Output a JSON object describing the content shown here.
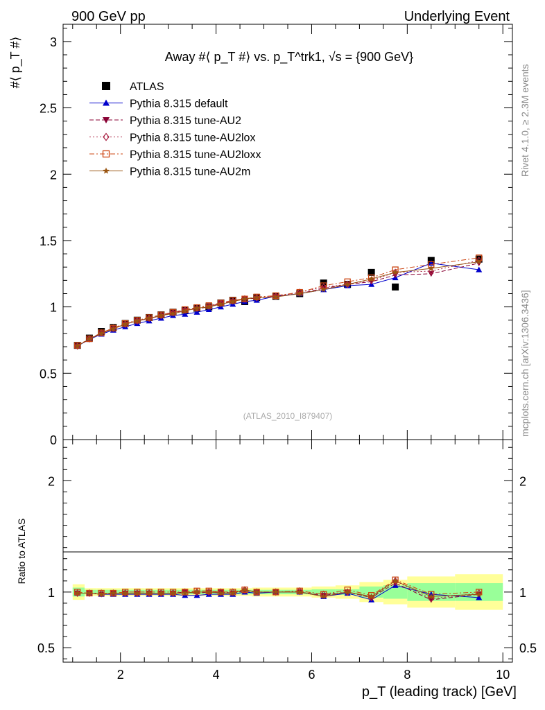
{
  "header": {
    "left": "900 GeV pp",
    "right": "Underlying Event"
  },
  "side_text": {
    "rivet": "Rivet 4.1.0, ≥ 2.3M events",
    "mcplots": "mcplots.cern.ch [arXiv:1306.3436]"
  },
  "chart_data": [
    {
      "type": "scatter",
      "panel": "main",
      "title": "Away #⟨ p_T #⟩ vs. p_T^trk1, √s = {900 GeV}",
      "ylabel": "#⟨ p_T #⟩",
      "xlim": [
        0.8,
        10.2
      ],
      "ylim": [
        0,
        3.13
      ],
      "yticks": [
        0,
        0.5,
        1,
        1.5,
        2,
        2.5,
        3
      ],
      "ytick_labels": [
        "0",
        "0.5",
        "1",
        "1.5",
        "2",
        "2.5",
        "3"
      ],
      "watermark": "(ATLAS_2010_I879407)",
      "x": [
        1.1,
        1.35,
        1.6,
        1.85,
        2.1,
        2.35,
        2.6,
        2.85,
        3.1,
        3.35,
        3.6,
        3.85,
        4.1,
        4.35,
        4.6,
        4.85,
        5.25,
        5.75,
        6.25,
        6.75,
        7.25,
        7.75,
        8.5,
        9.5
      ],
      "series": [
        {
          "name": "ATLAS",
          "color": "#000000",
          "marker": "square",
          "line": "none",
          "values": [
            0.71,
            0.765,
            0.815,
            0.845,
            0.875,
            0.9,
            0.92,
            0.94,
            0.96,
            0.975,
            0.99,
            1.0,
            1.03,
            1.05,
            1.04,
            1.07,
            1.08,
            1.1,
            1.18,
            1.17,
            1.26,
            1.15,
            1.35,
            1.36
          ]
        },
        {
          "name": "Pythia 8.315 default",
          "color": "#0000cc",
          "marker": "triangle-up",
          "line": "solid",
          "values": [
            0.705,
            0.755,
            0.795,
            0.825,
            0.85,
            0.875,
            0.895,
            0.915,
            0.935,
            0.945,
            0.96,
            0.98,
            1.0,
            1.02,
            1.04,
            1.05,
            1.08,
            1.1,
            1.13,
            1.16,
            1.17,
            1.22,
            1.33,
            1.28
          ]
        },
        {
          "name": "Pythia 8.315 tune-AU2",
          "color": "#880033",
          "marker": "triangle-down",
          "line": "dashed",
          "values": [
            0.705,
            0.755,
            0.8,
            0.835,
            0.87,
            0.895,
            0.91,
            0.935,
            0.955,
            0.975,
            0.985,
            1.0,
            1.03,
            1.04,
            1.06,
            1.065,
            1.08,
            1.1,
            1.14,
            1.17,
            1.19,
            1.24,
            1.25,
            1.33
          ]
        },
        {
          "name": "Pythia 8.315 tune-AU2lox",
          "color": "#aa2244",
          "marker": "diamond-open",
          "line": "dotted",
          "values": [
            0.705,
            0.76,
            0.805,
            0.84,
            0.87,
            0.895,
            0.915,
            0.935,
            0.955,
            0.975,
            0.99,
            1.005,
            1.025,
            1.045,
            1.06,
            1.07,
            1.08,
            1.11,
            1.15,
            1.17,
            1.2,
            1.26,
            1.27,
            1.35
          ]
        },
        {
          "name": "Pythia 8.315 tune-AU2loxx",
          "color": "#cc4411",
          "marker": "square-open",
          "line": "dashdot",
          "values": [
            0.71,
            0.76,
            0.805,
            0.84,
            0.875,
            0.9,
            0.92,
            0.94,
            0.96,
            0.98,
            0.995,
            1.01,
            1.03,
            1.05,
            1.06,
            1.075,
            1.085,
            1.11,
            1.16,
            1.19,
            1.22,
            1.28,
            1.32,
            1.37
          ]
        },
        {
          "name": "Pythia 8.315 tune-AU2m",
          "color": "#995511",
          "marker": "star",
          "line": "solid",
          "values": [
            0.705,
            0.76,
            0.8,
            0.835,
            0.87,
            0.895,
            0.915,
            0.935,
            0.95,
            0.97,
            0.99,
            1.0,
            1.02,
            1.04,
            1.06,
            1.07,
            1.075,
            1.1,
            1.13,
            1.17,
            1.21,
            1.26,
            1.29,
            1.34
          ]
        }
      ]
    },
    {
      "type": "scatter",
      "panel": "ratio",
      "ylabel": "Ratio to ATLAS",
      "xlabel": "p_T (leading track) [GeV]",
      "xlim": [
        0.8,
        10.2
      ],
      "xticks": [
        2,
        4,
        6,
        8,
        10
      ],
      "xtick_labels": [
        "2",
        "4",
        "6",
        "8",
        "10"
      ],
      "ylim": [
        0.37,
        2.37
      ],
      "yticks": [
        0.5,
        1,
        2
      ],
      "ytick_labels": [
        "0.5",
        "1",
        "2"
      ],
      "bin_edges": [
        1.0,
        1.25,
        1.5,
        1.75,
        2.0,
        2.25,
        2.5,
        2.75,
        3.0,
        3.25,
        3.5,
        3.75,
        4.0,
        4.25,
        4.5,
        4.75,
        5.0,
        5.5,
        6.0,
        6.5,
        7.0,
        7.5,
        8.0,
        9.0,
        10.0
      ],
      "band_stat": [
        0.04,
        0.02,
        0.02,
        0.02,
        0.02,
        0.02,
        0.02,
        0.02,
        0.02,
        0.02,
        0.02,
        0.02,
        0.02,
        0.02,
        0.02,
        0.02,
        0.02,
        0.02,
        0.025,
        0.025,
        0.05,
        0.06,
        0.08,
        0.08
      ],
      "band_total": [
        0.07,
        0.035,
        0.035,
        0.035,
        0.035,
        0.035,
        0.035,
        0.035,
        0.035,
        0.035,
        0.035,
        0.035,
        0.035,
        0.035,
        0.035,
        0.04,
        0.04,
        0.04,
        0.05,
        0.06,
        0.09,
        0.11,
        0.14,
        0.16
      ],
      "band_colors": {
        "stat": "#99ff99",
        "total": "#ffff99"
      },
      "series": [
        {
          "name": "Pythia 8.315 default",
          "values": [
            0.99,
            0.99,
            0.98,
            0.98,
            0.98,
            0.98,
            0.98,
            0.98,
            0.98,
            0.97,
            0.97,
            0.98,
            0.98,
            0.98,
            1.0,
            0.99,
            1.0,
            1.0,
            0.96,
            0.99,
            0.93,
            1.06,
            0.98,
            0.95
          ]
        },
        {
          "name": "Pythia 8.315 tune-AU2",
          "values": [
            0.99,
            0.99,
            0.98,
            0.99,
            0.99,
            0.99,
            0.99,
            0.99,
            0.99,
            1.0,
            0.99,
            1.0,
            1.0,
            0.99,
            1.01,
            1.0,
            1.0,
            1.0,
            0.97,
            1.0,
            0.95,
            1.08,
            0.93,
            0.98
          ]
        },
        {
          "name": "Pythia 8.315 tune-AU2lox",
          "values": [
            0.99,
            0.99,
            0.99,
            0.99,
            0.99,
            0.99,
            0.99,
            0.99,
            0.99,
            1.0,
            1.0,
            1.0,
            1.0,
            1.0,
            1.02,
            1.0,
            1.0,
            1.01,
            0.98,
            1.0,
            0.95,
            1.1,
            0.94,
            0.99
          ]
        },
        {
          "name": "Pythia 8.315 tune-AU2loxx",
          "values": [
            1.0,
            0.99,
            0.99,
            0.99,
            1.0,
            1.0,
            1.0,
            1.0,
            1.0,
            1.0,
            1.01,
            1.01,
            1.0,
            1.0,
            1.02,
            1.0,
            1.0,
            1.01,
            0.98,
            1.02,
            0.97,
            1.11,
            0.98,
            1.0
          ]
        },
        {
          "name": "Pythia 8.315 tune-AU2m",
          "values": [
            0.99,
            0.99,
            0.98,
            0.99,
            0.99,
            0.99,
            0.99,
            0.99,
            0.99,
            0.99,
            1.0,
            1.0,
            0.99,
            0.99,
            1.02,
            1.0,
            1.0,
            1.0,
            0.96,
            1.0,
            0.96,
            1.1,
            0.96,
            0.98
          ]
        }
      ]
    }
  ]
}
